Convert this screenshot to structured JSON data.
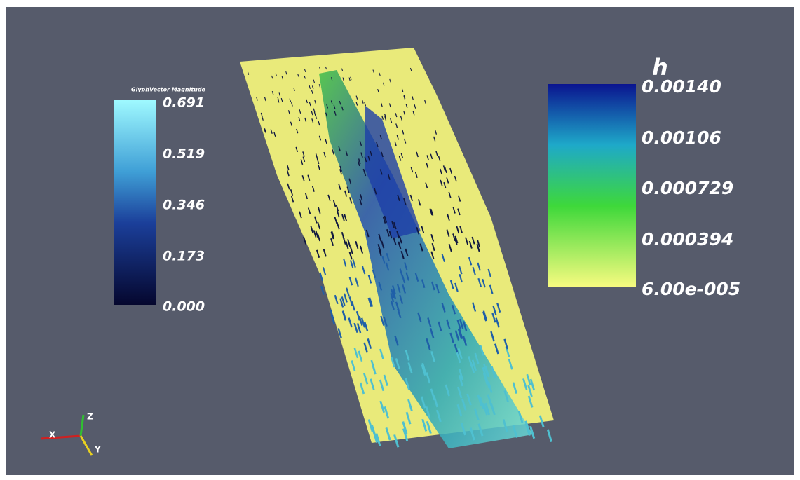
{
  "legends": [
    {
      "title": "GlyphVector Magnitude",
      "labels": [
        "0.691",
        "0.519",
        "0.346",
        "0.173",
        "0.000"
      ]
    },
    {
      "title": "h",
      "labels": [
        "0.00140",
        "0.00106",
        "0.000729",
        "0.000394",
        "6.00e-005"
      ]
    }
  ],
  "axes": {
    "x": "X",
    "y": "Y",
    "z": "Z"
  }
}
